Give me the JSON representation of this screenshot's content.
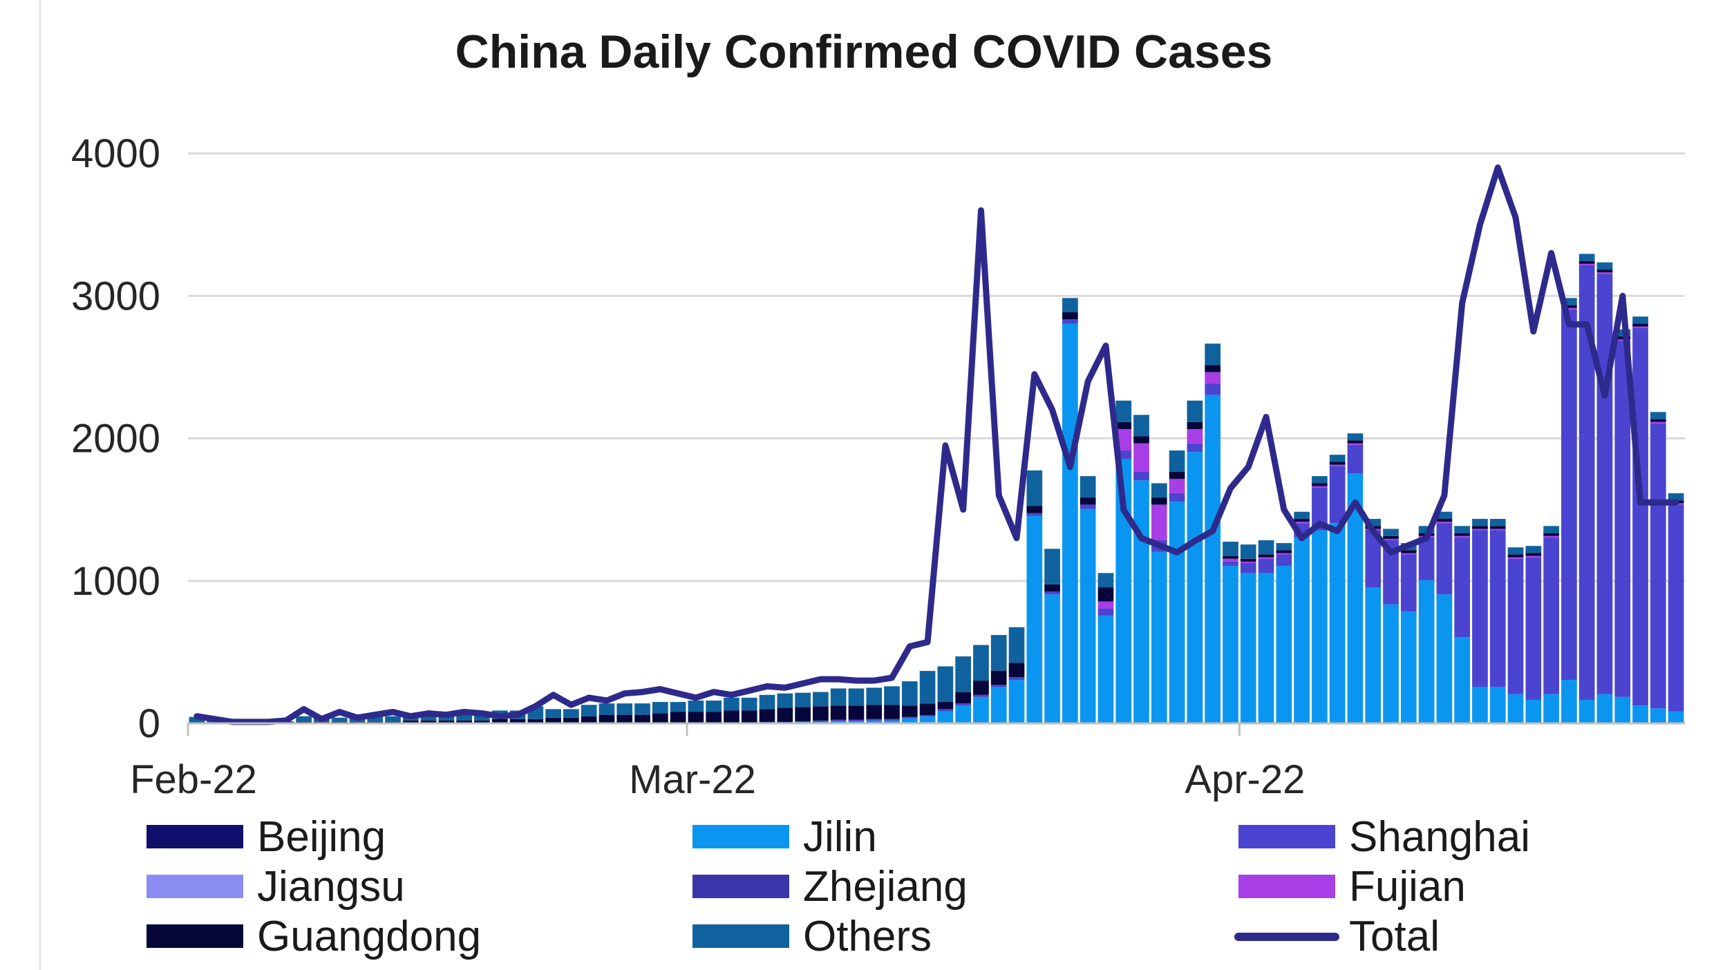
{
  "chart_data": {
    "type": "bar",
    "title": "China Daily Confirmed COVID Cases",
    "xlabel": "",
    "ylabel": "",
    "ylim": [
      0,
      4000
    ],
    "y_ticks": [
      "0",
      "1000",
      "2000",
      "3000",
      "4000"
    ],
    "x_tick_labels": [
      "Feb-22",
      "Mar-22",
      "Apr-22"
    ],
    "stacked": true,
    "grid": true,
    "legend_position": "bottom",
    "categories": [
      "2022-02-01",
      "2022-02-02",
      "2022-02-03",
      "2022-02-04",
      "2022-02-05",
      "2022-02-06",
      "2022-02-07",
      "2022-02-08",
      "2022-02-09",
      "2022-02-10",
      "2022-02-11",
      "2022-02-12",
      "2022-02-13",
      "2022-02-14",
      "2022-02-15",
      "2022-02-16",
      "2022-02-17",
      "2022-02-18",
      "2022-02-19",
      "2022-02-20",
      "2022-02-21",
      "2022-02-22",
      "2022-02-23",
      "2022-02-24",
      "2022-02-25",
      "2022-02-26",
      "2022-02-27",
      "2022-02-28",
      "2022-03-01",
      "2022-03-02",
      "2022-03-03",
      "2022-03-04",
      "2022-03-05",
      "2022-03-06",
      "2022-03-07",
      "2022-03-08",
      "2022-03-09",
      "2022-03-10",
      "2022-03-11",
      "2022-03-12",
      "2022-03-13",
      "2022-03-14",
      "2022-03-15",
      "2022-03-16",
      "2022-03-17",
      "2022-03-18",
      "2022-03-19",
      "2022-03-20",
      "2022-03-21",
      "2022-03-22",
      "2022-03-23",
      "2022-03-24",
      "2022-03-25",
      "2022-03-26",
      "2022-03-27",
      "2022-03-28",
      "2022-03-29",
      "2022-03-30",
      "2022-03-31",
      "2022-04-01",
      "2022-04-02",
      "2022-04-03",
      "2022-04-04",
      "2022-04-05",
      "2022-04-06",
      "2022-04-07",
      "2022-04-08",
      "2022-04-09",
      "2022-04-10",
      "2022-04-11",
      "2022-04-12",
      "2022-04-13",
      "2022-04-14",
      "2022-04-15",
      "2022-04-16",
      "2022-04-17",
      "2022-04-18",
      "2022-04-19",
      "2022-04-20",
      "2022-04-21",
      "2022-04-22",
      "2022-04-23",
      "2022-04-24",
      "2022-04-25"
    ],
    "series": [
      {
        "name": "Beijing",
        "color": "#0f0f6b",
        "kind": "bar",
        "values": [
          0,
          0,
          0,
          0,
          0,
          0,
          0,
          0,
          0,
          0,
          0,
          0,
          0,
          0,
          0,
          0,
          0,
          0,
          0,
          0,
          0,
          0,
          0,
          0,
          0,
          0,
          0,
          0,
          0,
          0,
          0,
          0,
          0,
          0,
          0,
          0,
          0,
          0,
          0,
          0,
          5,
          8,
          5,
          5,
          5,
          5,
          5,
          5,
          5,
          5,
          5,
          5,
          5,
          5,
          5,
          5,
          5,
          5,
          5,
          5,
          5,
          5,
          5,
          5,
          5,
          5,
          5,
          5,
          5,
          5,
          5,
          5,
          5,
          5,
          5,
          5,
          5,
          5,
          5,
          5,
          5,
          5,
          5,
          5
        ]
      },
      {
        "name": "Jilin",
        "color": "#0a96f0",
        "kind": "bar",
        "values": [
          0,
          0,
          0,
          0,
          0,
          0,
          0,
          0,
          0,
          0,
          0,
          0,
          0,
          0,
          0,
          0,
          0,
          0,
          0,
          0,
          0,
          0,
          0,
          0,
          0,
          0,
          0,
          0,
          0,
          0,
          0,
          0,
          5,
          5,
          10,
          10,
          15,
          15,
          20,
          20,
          30,
          40,
          80,
          120,
          180,
          250,
          300,
          1450,
          900,
          2800,
          1500,
          750,
          1850,
          1700,
          1200,
          1550,
          1900,
          2300,
          1100,
          1050,
          1050,
          1100,
          1300,
          1350,
          1400,
          1750,
          950,
          830,
          780,
          1000,
          900,
          600,
          250,
          250,
          200,
          160,
          200,
          300,
          160,
          200,
          180,
          120,
          100,
          80
        ]
      },
      {
        "name": "Shanghai",
        "color": "#4a44d0",
        "kind": "bar",
        "values": [
          0,
          0,
          0,
          0,
          0,
          0,
          0,
          0,
          0,
          0,
          0,
          0,
          0,
          0,
          0,
          0,
          0,
          0,
          0,
          0,
          0,
          0,
          0,
          0,
          0,
          0,
          0,
          0,
          0,
          0,
          0,
          0,
          5,
          5,
          5,
          10,
          10,
          10,
          10,
          10,
          10,
          10,
          15,
          15,
          15,
          15,
          20,
          20,
          20,
          30,
          30,
          50,
          60,
          60,
          80,
          60,
          60,
          80,
          30,
          70,
          100,
          80,
          100,
          300,
          400,
          200,
          400,
          450,
          400,
          300,
          500,
          700,
          1100,
          1100,
          950,
          1000,
          1100,
          2600,
          3050,
          2950,
          2500,
          2650,
          2000,
          1450
        ]
      },
      {
        "name": "Jiangsu",
        "color": "#8a8cf2",
        "kind": "bar",
        "values": [
          0,
          0,
          0,
          0,
          0,
          0,
          0,
          0,
          0,
          0,
          0,
          0,
          0,
          0,
          0,
          0,
          0,
          0,
          0,
          0,
          0,
          0,
          0,
          0,
          0,
          0,
          0,
          0,
          0,
          0,
          0,
          0,
          0,
          0,
          0,
          0,
          0,
          0,
          0,
          0,
          0,
          0,
          0,
          0,
          0,
          0,
          0,
          0,
          0,
          0,
          0,
          0,
          0,
          0,
          0,
          0,
          0,
          0,
          0,
          0,
          0,
          0,
          0,
          0,
          0,
          0,
          0,
          0,
          0,
          0,
          0,
          0,
          0,
          0,
          0,
          0,
          0,
          0,
          0,
          0,
          0,
          0,
          0,
          0
        ]
      },
      {
        "name": "Zhejiang",
        "color": "#3a35a8",
        "kind": "bar",
        "values": [
          0,
          0,
          0,
          0,
          0,
          0,
          0,
          0,
          0,
          0,
          0,
          0,
          0,
          0,
          0,
          0,
          0,
          0,
          0,
          0,
          0,
          0,
          0,
          0,
          0,
          0,
          0,
          0,
          0,
          0,
          0,
          0,
          0,
          0,
          0,
          0,
          0,
          0,
          0,
          0,
          0,
          0,
          0,
          0,
          0,
          0,
          0,
          0,
          0,
          0,
          0,
          0,
          0,
          0,
          0,
          0,
          0,
          0,
          0,
          0,
          0,
          0,
          0,
          0,
          0,
          0,
          0,
          0,
          0,
          0,
          0,
          0,
          0,
          0,
          0,
          0,
          0,
          0,
          0,
          0,
          0,
          0,
          0,
          0
        ]
      },
      {
        "name": "Fujian",
        "color": "#a83ee6",
        "kind": "bar",
        "values": [
          0,
          0,
          0,
          0,
          0,
          0,
          0,
          0,
          0,
          0,
          0,
          0,
          0,
          0,
          0,
          0,
          0,
          0,
          0,
          0,
          0,
          0,
          0,
          0,
          0,
          0,
          0,
          0,
          0,
          0,
          0,
          0,
          0,
          0,
          0,
          0,
          0,
          0,
          0,
          0,
          0,
          0,
          0,
          0,
          0,
          0,
          0,
          0,
          0,
          0,
          0,
          50,
          150,
          200,
          250,
          100,
          100,
          80,
          20,
          10,
          10,
          10,
          10,
          10,
          10,
          10,
          10,
          10,
          10,
          10,
          10,
          10,
          10,
          10,
          10,
          10,
          10,
          10,
          10,
          10,
          10,
          10,
          10,
          10
        ]
      },
      {
        "name": "Guangdong",
        "color": "#06063a",
        "kind": "bar",
        "values": [
          5,
          5,
          5,
          5,
          5,
          5,
          10,
          10,
          10,
          10,
          10,
          10,
          20,
          20,
          20,
          20,
          20,
          30,
          30,
          30,
          40,
          40,
          50,
          60,
          60,
          60,
          70,
          80,
          80,
          80,
          90,
          90,
          90,
          100,
          100,
          100,
          100,
          100,
          100,
          100,
          80,
          80,
          50,
          80,
          100,
          100,
          100,
          50,
          50,
          50,
          50,
          100,
          50,
          50,
          50,
          50,
          50,
          50,
          20,
          20,
          20,
          20,
          20,
          20,
          20,
          20,
          20,
          20,
          20,
          20,
          20,
          20,
          20,
          20,
          20,
          20,
          20,
          20,
          20,
          20,
          20,
          20,
          20,
          20
        ]
      },
      {
        "name": "Others",
        "color": "#10629e",
        "kind": "bar",
        "values": [
          40,
          20,
          10,
          10,
          10,
          10,
          40,
          30,
          30,
          40,
          40,
          40,
          50,
          50,
          50,
          50,
          50,
          60,
          60,
          90,
          60,
          60,
          80,
          80,
          80,
          80,
          80,
          70,
          80,
          80,
          90,
          90,
          100,
          100,
          100,
          100,
          120,
          120,
          120,
          130,
          170,
          230,
          250,
          250,
          250,
          250,
          250,
          250,
          250,
          100,
          150,
          100,
          150,
          150,
          100,
          150,
          150,
          150,
          100,
          100,
          100,
          50,
          50,
          50,
          50,
          50,
          50,
          50,
          50,
          50,
          50,
          50,
          50,
          50,
          50,
          50,
          50,
          50,
          50,
          50,
          50,
          50,
          50,
          50
        ]
      },
      {
        "name": "Total",
        "color": "#2e2a8c",
        "kind": "line",
        "values": [
          50,
          30,
          10,
          10,
          10,
          20,
          100,
          30,
          80,
          40,
          60,
          80,
          50,
          70,
          60,
          80,
          70,
          50,
          60,
          120,
          200,
          130,
          180,
          160,
          210,
          220,
          240,
          210,
          180,
          220,
          200,
          230,
          260,
          250,
          280,
          310,
          310,
          300,
          300,
          320,
          540,
          570,
          1950,
          1500,
          3600,
          1600,
          1300,
          2450,
          2200,
          1800,
          2400,
          2650,
          1500,
          1300,
          1250,
          1200,
          1280,
          1350,
          1650,
          1800,
          2150,
          1500,
          1300,
          1400,
          1350,
          1550,
          1350,
          1200,
          1250,
          1300,
          1600,
          2950,
          3500,
          3900,
          3550,
          2750,
          3300,
          2800,
          2800,
          2300,
          3000,
          1550,
          1550,
          1550
        ]
      }
    ]
  }
}
